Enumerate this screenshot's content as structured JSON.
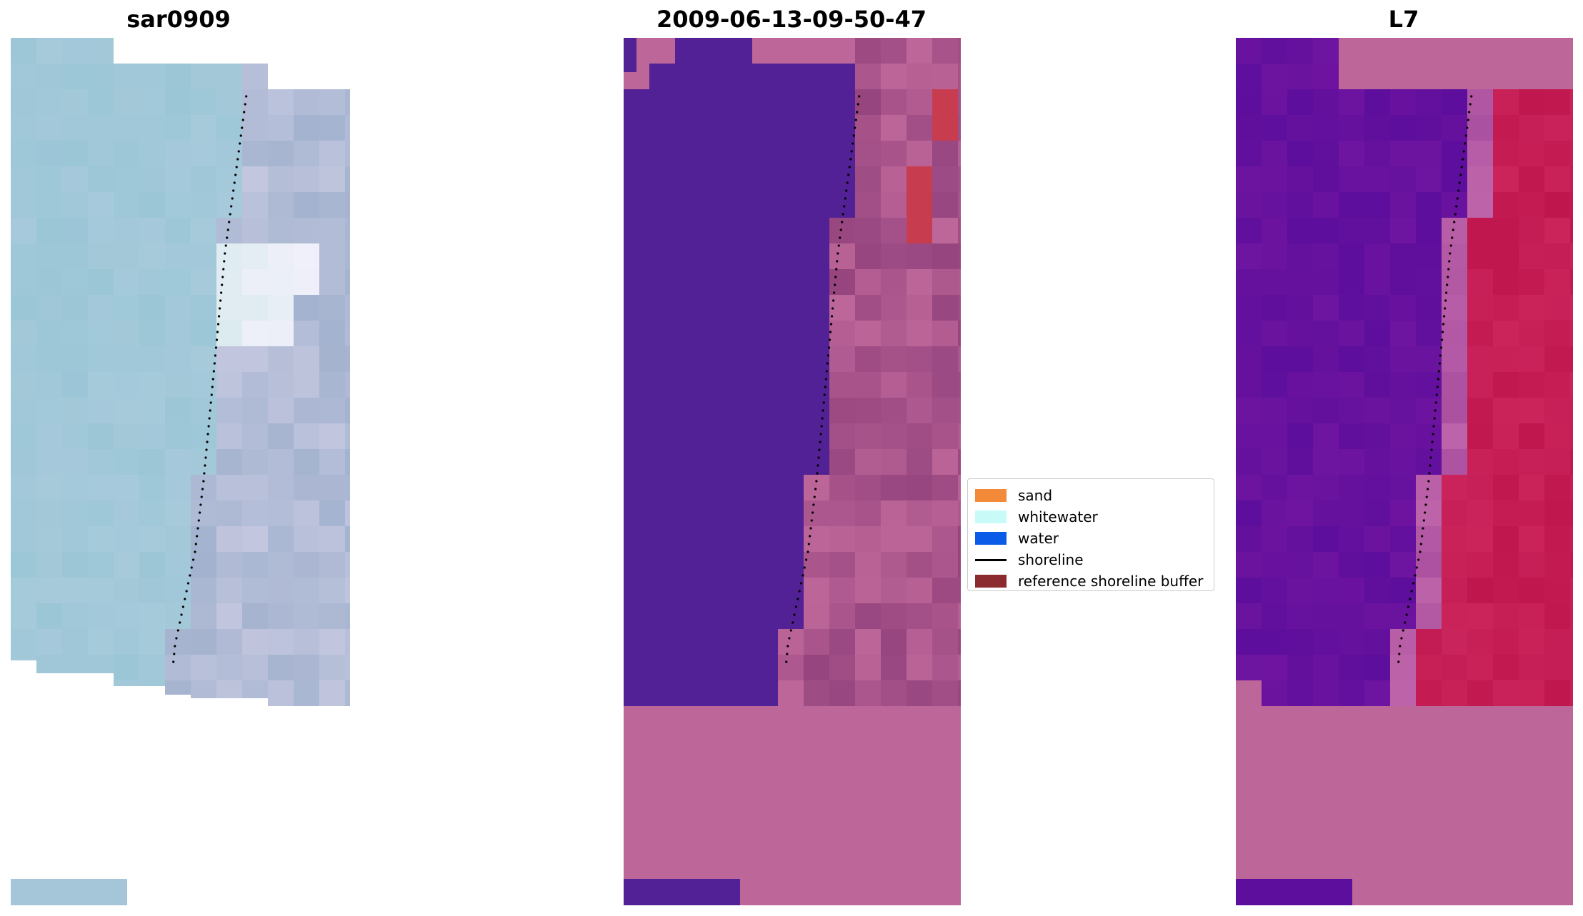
{
  "panels": [
    {
      "title": "sar0909",
      "kind": "rgb"
    },
    {
      "title": "2009-06-13-09-50-47",
      "kind": "classified"
    },
    {
      "title": "L7",
      "kind": "index"
    }
  ],
  "legend": {
    "items": [
      {
        "label": "sand",
        "color": "#f28a3a",
        "type": "patch"
      },
      {
        "label": "whitewater",
        "color": "#c8fbf7",
        "type": "patch"
      },
      {
        "label": "water",
        "color": "#0a5be8",
        "type": "patch"
      },
      {
        "label": "shoreline",
        "color": "#000000",
        "type": "line"
      },
      {
        "label": "reference shoreline buffer",
        "color": "#8b2a2f",
        "type": "patch"
      }
    ]
  },
  "colors": {
    "nodata_pink": "#bd6699",
    "water_purple": "#532196",
    "index_purple": "#5d0e9c",
    "index_red": "#c0164e",
    "rgb_water": "#9bc6d6",
    "rgb_land": "#c2c6de"
  }
}
